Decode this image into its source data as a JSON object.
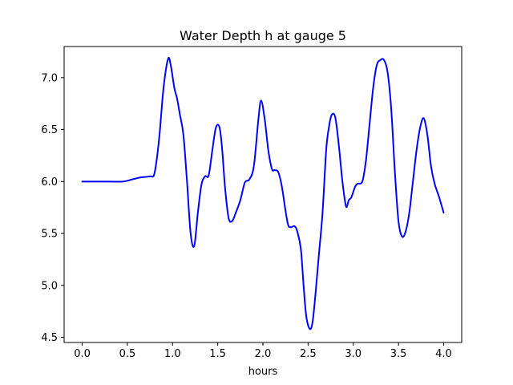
{
  "chart_data": {
    "type": "line",
    "title": "Water Depth h at gauge 5",
    "xlabel": "hours",
    "ylabel": "",
    "xlim": [
      -0.2,
      4.2
    ],
    "ylim": [
      4.45,
      7.3
    ],
    "xticks": [
      0.0,
      0.5,
      1.0,
      1.5,
      2.0,
      2.5,
      3.0,
      3.5,
      4.0
    ],
    "xtick_labels": [
      "0.0",
      "0.5",
      "1.0",
      "1.5",
      "2.0",
      "2.5",
      "3.0",
      "3.5",
      "4.0"
    ],
    "yticks": [
      4.5,
      5.0,
      5.5,
      6.0,
      6.5,
      7.0
    ],
    "ytick_labels": [
      "4.5",
      "5.0",
      "5.5",
      "6.0",
      "6.5",
      "7.0"
    ],
    "grid": false,
    "series": [
      {
        "color": "#0000ff",
        "x": [
          0.0,
          0.2,
          0.45,
          0.55,
          0.65,
          0.75,
          0.8,
          0.85,
          0.9,
          0.95,
          0.98,
          1.02,
          1.05,
          1.08,
          1.12,
          1.16,
          1.2,
          1.24,
          1.28,
          1.32,
          1.36,
          1.4,
          1.44,
          1.48,
          1.52,
          1.55,
          1.58,
          1.62,
          1.66,
          1.7,
          1.75,
          1.8,
          1.85,
          1.9,
          1.95,
          1.98,
          2.02,
          2.06,
          2.1,
          2.13,
          2.17,
          2.21,
          2.25,
          2.28,
          2.31,
          2.35,
          2.38,
          2.42,
          2.45,
          2.48,
          2.52,
          2.55,
          2.58,
          2.62,
          2.66,
          2.7,
          2.73,
          2.76,
          2.8,
          2.84,
          2.88,
          2.92,
          2.95,
          2.98,
          3.02,
          3.05,
          3.1,
          3.14,
          3.18,
          3.22,
          3.26,
          3.3,
          3.34,
          3.38,
          3.42,
          3.46,
          3.5,
          3.54,
          3.58,
          3.62,
          3.66,
          3.7,
          3.74,
          3.78,
          3.82,
          3.86,
          3.9,
          3.95,
          4.0
        ],
        "y": [
          6.0,
          6.0,
          6.0,
          6.02,
          6.04,
          6.05,
          6.08,
          6.4,
          6.9,
          7.18,
          7.12,
          6.9,
          6.8,
          6.65,
          6.45,
          6.0,
          5.5,
          5.38,
          5.7,
          5.97,
          6.05,
          6.06,
          6.3,
          6.52,
          6.52,
          6.3,
          5.95,
          5.65,
          5.62,
          5.7,
          5.82,
          5.99,
          6.02,
          6.15,
          6.6,
          6.78,
          6.6,
          6.3,
          6.12,
          6.11,
          6.09,
          5.95,
          5.72,
          5.58,
          5.56,
          5.57,
          5.52,
          5.35,
          5.0,
          4.7,
          4.58,
          4.65,
          4.9,
          5.3,
          5.7,
          6.3,
          6.52,
          6.64,
          6.62,
          6.35,
          6.0,
          5.76,
          5.82,
          5.85,
          5.95,
          5.98,
          6.0,
          6.2,
          6.55,
          6.9,
          7.12,
          7.17,
          7.17,
          7.05,
          6.7,
          6.1,
          5.62,
          5.47,
          5.52,
          5.7,
          6.0,
          6.3,
          6.52,
          6.61,
          6.45,
          6.15,
          5.98,
          5.85,
          5.7
        ]
      }
    ]
  }
}
